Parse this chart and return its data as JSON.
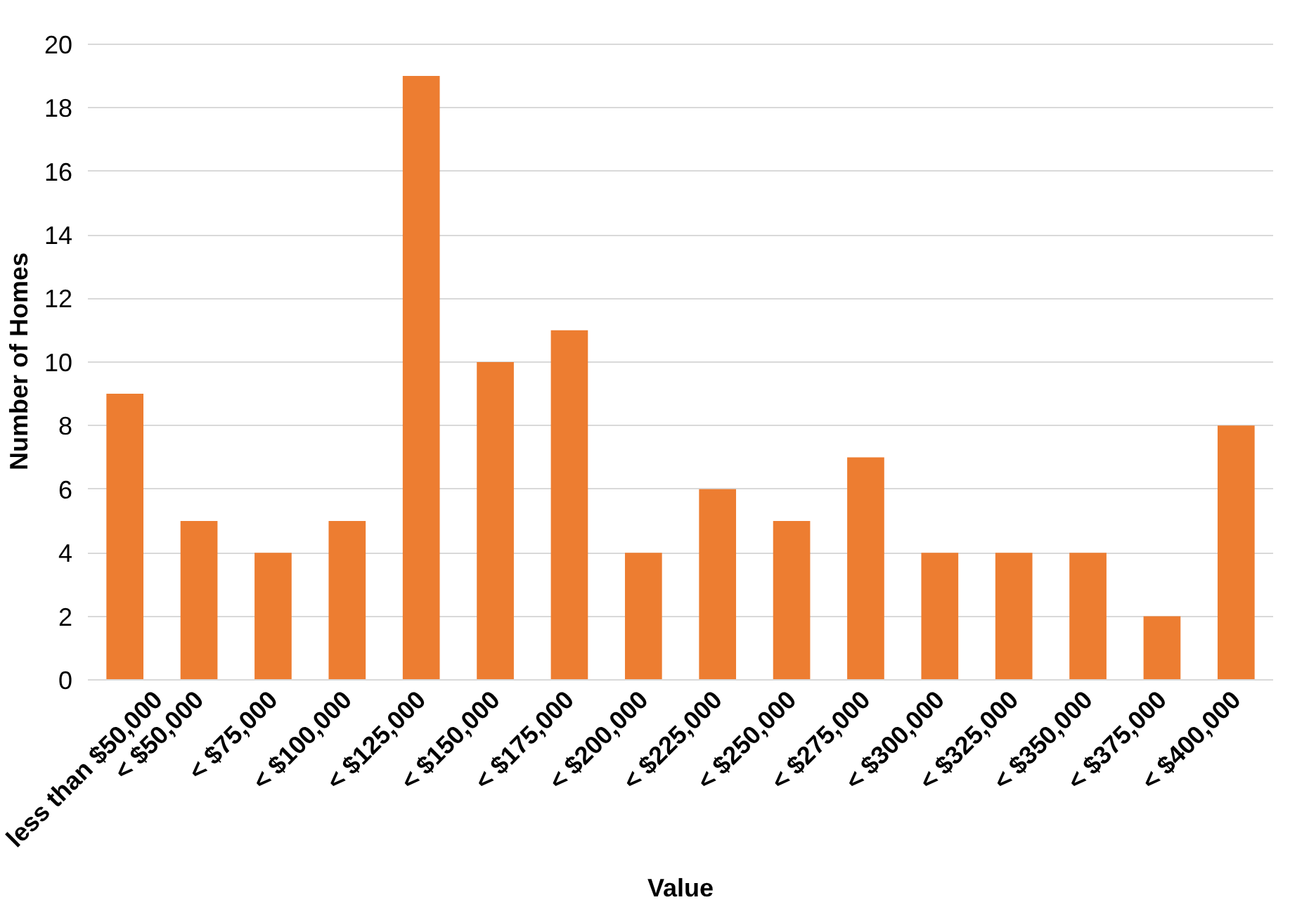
{
  "chart_data": {
    "type": "bar",
    "xlabel": "Value",
    "ylabel": "Number of Homes",
    "categories": [
      "less than $50,000",
      "< $50,000",
      "< $75,000",
      "< $100,000",
      "< $125,000",
      "< $150,000",
      "< $175,000",
      "< $200,000",
      "< $225,000",
      "< $250,000",
      "< $275,000",
      "< $300,000",
      "< $325,000",
      "< $350,000",
      "< $375,000",
      "< $400,000"
    ],
    "values": [
      9,
      5,
      4,
      5,
      19,
      10,
      11,
      4,
      6,
      5,
      7,
      4,
      4,
      4,
      2,
      8
    ],
    "color": "#ed7d31",
    "ylim": [
      0,
      20
    ],
    "yticks": [
      0,
      2,
      4,
      6,
      8,
      10,
      12,
      14,
      16,
      18,
      20
    ],
    "grid": "y"
  }
}
